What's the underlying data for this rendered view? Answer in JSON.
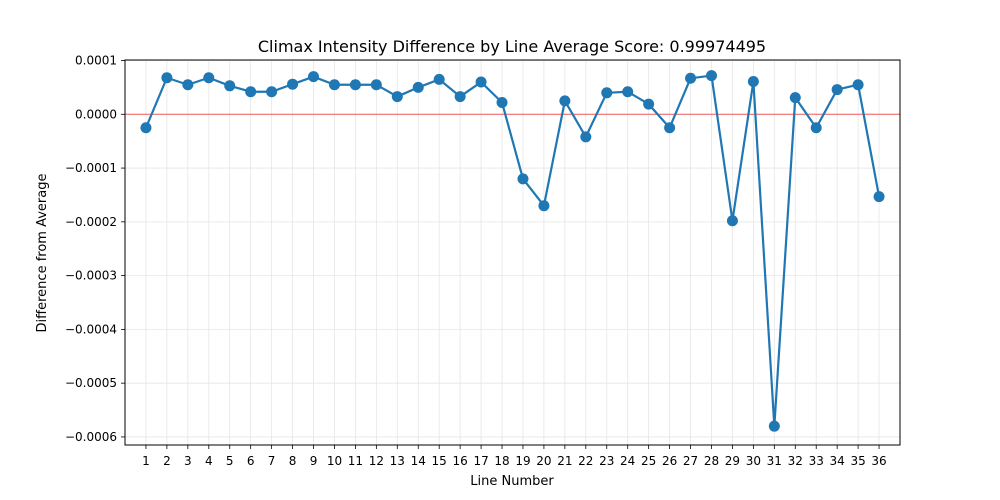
{
  "chart_data": {
    "type": "line",
    "title": "Climax Intensity Difference by Line Average Score: 0.99974495",
    "xlabel": "Line Number",
    "ylabel": "Difference from Average",
    "x": [
      1,
      2,
      3,
      4,
      5,
      6,
      7,
      8,
      9,
      10,
      11,
      12,
      13,
      14,
      15,
      16,
      17,
      18,
      19,
      20,
      21,
      22,
      23,
      24,
      25,
      26,
      27,
      28,
      29,
      30,
      31,
      32,
      33,
      34,
      35,
      36
    ],
    "series": [
      {
        "values": [
          -2.5e-05,
          6.8e-05,
          5.5e-05,
          6.8e-05,
          5.3e-05,
          4.2e-05,
          4.2e-05,
          5.6e-05,
          7e-05,
          5.5e-05,
          5.5e-05,
          5.5e-05,
          3.3e-05,
          5e-05,
          6.5e-05,
          3.3e-05,
          6e-05,
          2.2e-05,
          -0.00012,
          -0.00017,
          2.5e-05,
          -4.2e-05,
          4e-05,
          4.2e-05,
          1.9e-05,
          -2.5e-05,
          6.7e-05,
          7.2e-05,
          -0.000198,
          6.1e-05,
          -0.00058,
          3.1e-05,
          -2.5e-05,
          4.6e-05,
          5.5e-05,
          -0.000153
        ],
        "color": "#1f77b4"
      }
    ],
    "reference_line": {
      "y": 0,
      "color": "#ff0000"
    },
    "xlim": [
      0.0,
      37.0
    ],
    "ylim": [
      -0.000615,
      0.000101
    ],
    "yticks": [
      0.0001,
      0.0,
      -0.0001,
      -0.0002,
      -0.0003,
      -0.0004,
      -0.0005,
      -0.0006
    ],
    "ytick_labels": [
      "0.0001",
      "0.0000",
      "−0.0001",
      "−0.0002",
      "−0.0003",
      "−0.0004",
      "−0.0005",
      "−0.0006"
    ],
    "grid": true,
    "legend": "none"
  }
}
